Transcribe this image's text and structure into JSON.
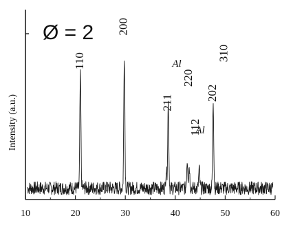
{
  "chart_data": {
    "type": "line",
    "title": "Ø = 2",
    "ylabel": "Intensity (a.u.)",
    "xlabel": "",
    "xlim": [
      10,
      60
    ],
    "ylim": [
      0,
      100
    ],
    "x_ticks": [
      10,
      20,
      30,
      40,
      50,
      60
    ],
    "x_tick_labels": [
      "10",
      "20",
      "30",
      "40",
      "50",
      "60"
    ],
    "y_ticks_shown": false,
    "baseline": 6,
    "noise_amplitude": 3.5,
    "line_color": "#1a1a1a",
    "peaks": [
      {
        "x": 21.0,
        "height": 60
      },
      {
        "x": 29.8,
        "height": 71
      },
      {
        "x": 38.2,
        "height": 10
      },
      {
        "x": 38.6,
        "height": 45
      },
      {
        "x": 42.4,
        "height": 15
      },
      {
        "x": 42.8,
        "height": 12
      },
      {
        "x": 44.8,
        "height": 10
      },
      {
        "x": 47.6,
        "height": 46
      }
    ],
    "annotations": [
      {
        "text": "110",
        "x": 21.0,
        "y": 73,
        "italic": false,
        "rotated": true
      },
      {
        "text": "200",
        "x": 29.8,
        "y": 91,
        "italic": false,
        "rotated": true
      },
      {
        "text": "211",
        "x": 38.6,
        "y": 51,
        "italic": false,
        "rotated": true
      },
      {
        "text": "Al",
        "x": 40.3,
        "y": 70,
        "italic": true,
        "rotated": false
      },
      {
        "text": "220",
        "x": 42.8,
        "y": 64,
        "italic": false,
        "rotated": true
      },
      {
        "text": "112",
        "x": 44.2,
        "y": 38,
        "italic": false,
        "rotated": true
      },
      {
        "text": "Al",
        "x": 45.0,
        "y": 35,
        "italic": true,
        "rotated": false
      },
      {
        "text": "202",
        "x": 47.6,
        "y": 56,
        "italic": false,
        "rotated": true
      },
      {
        "text": "310",
        "x": 49.9,
        "y": 77,
        "italic": false,
        "rotated": true
      }
    ]
  }
}
